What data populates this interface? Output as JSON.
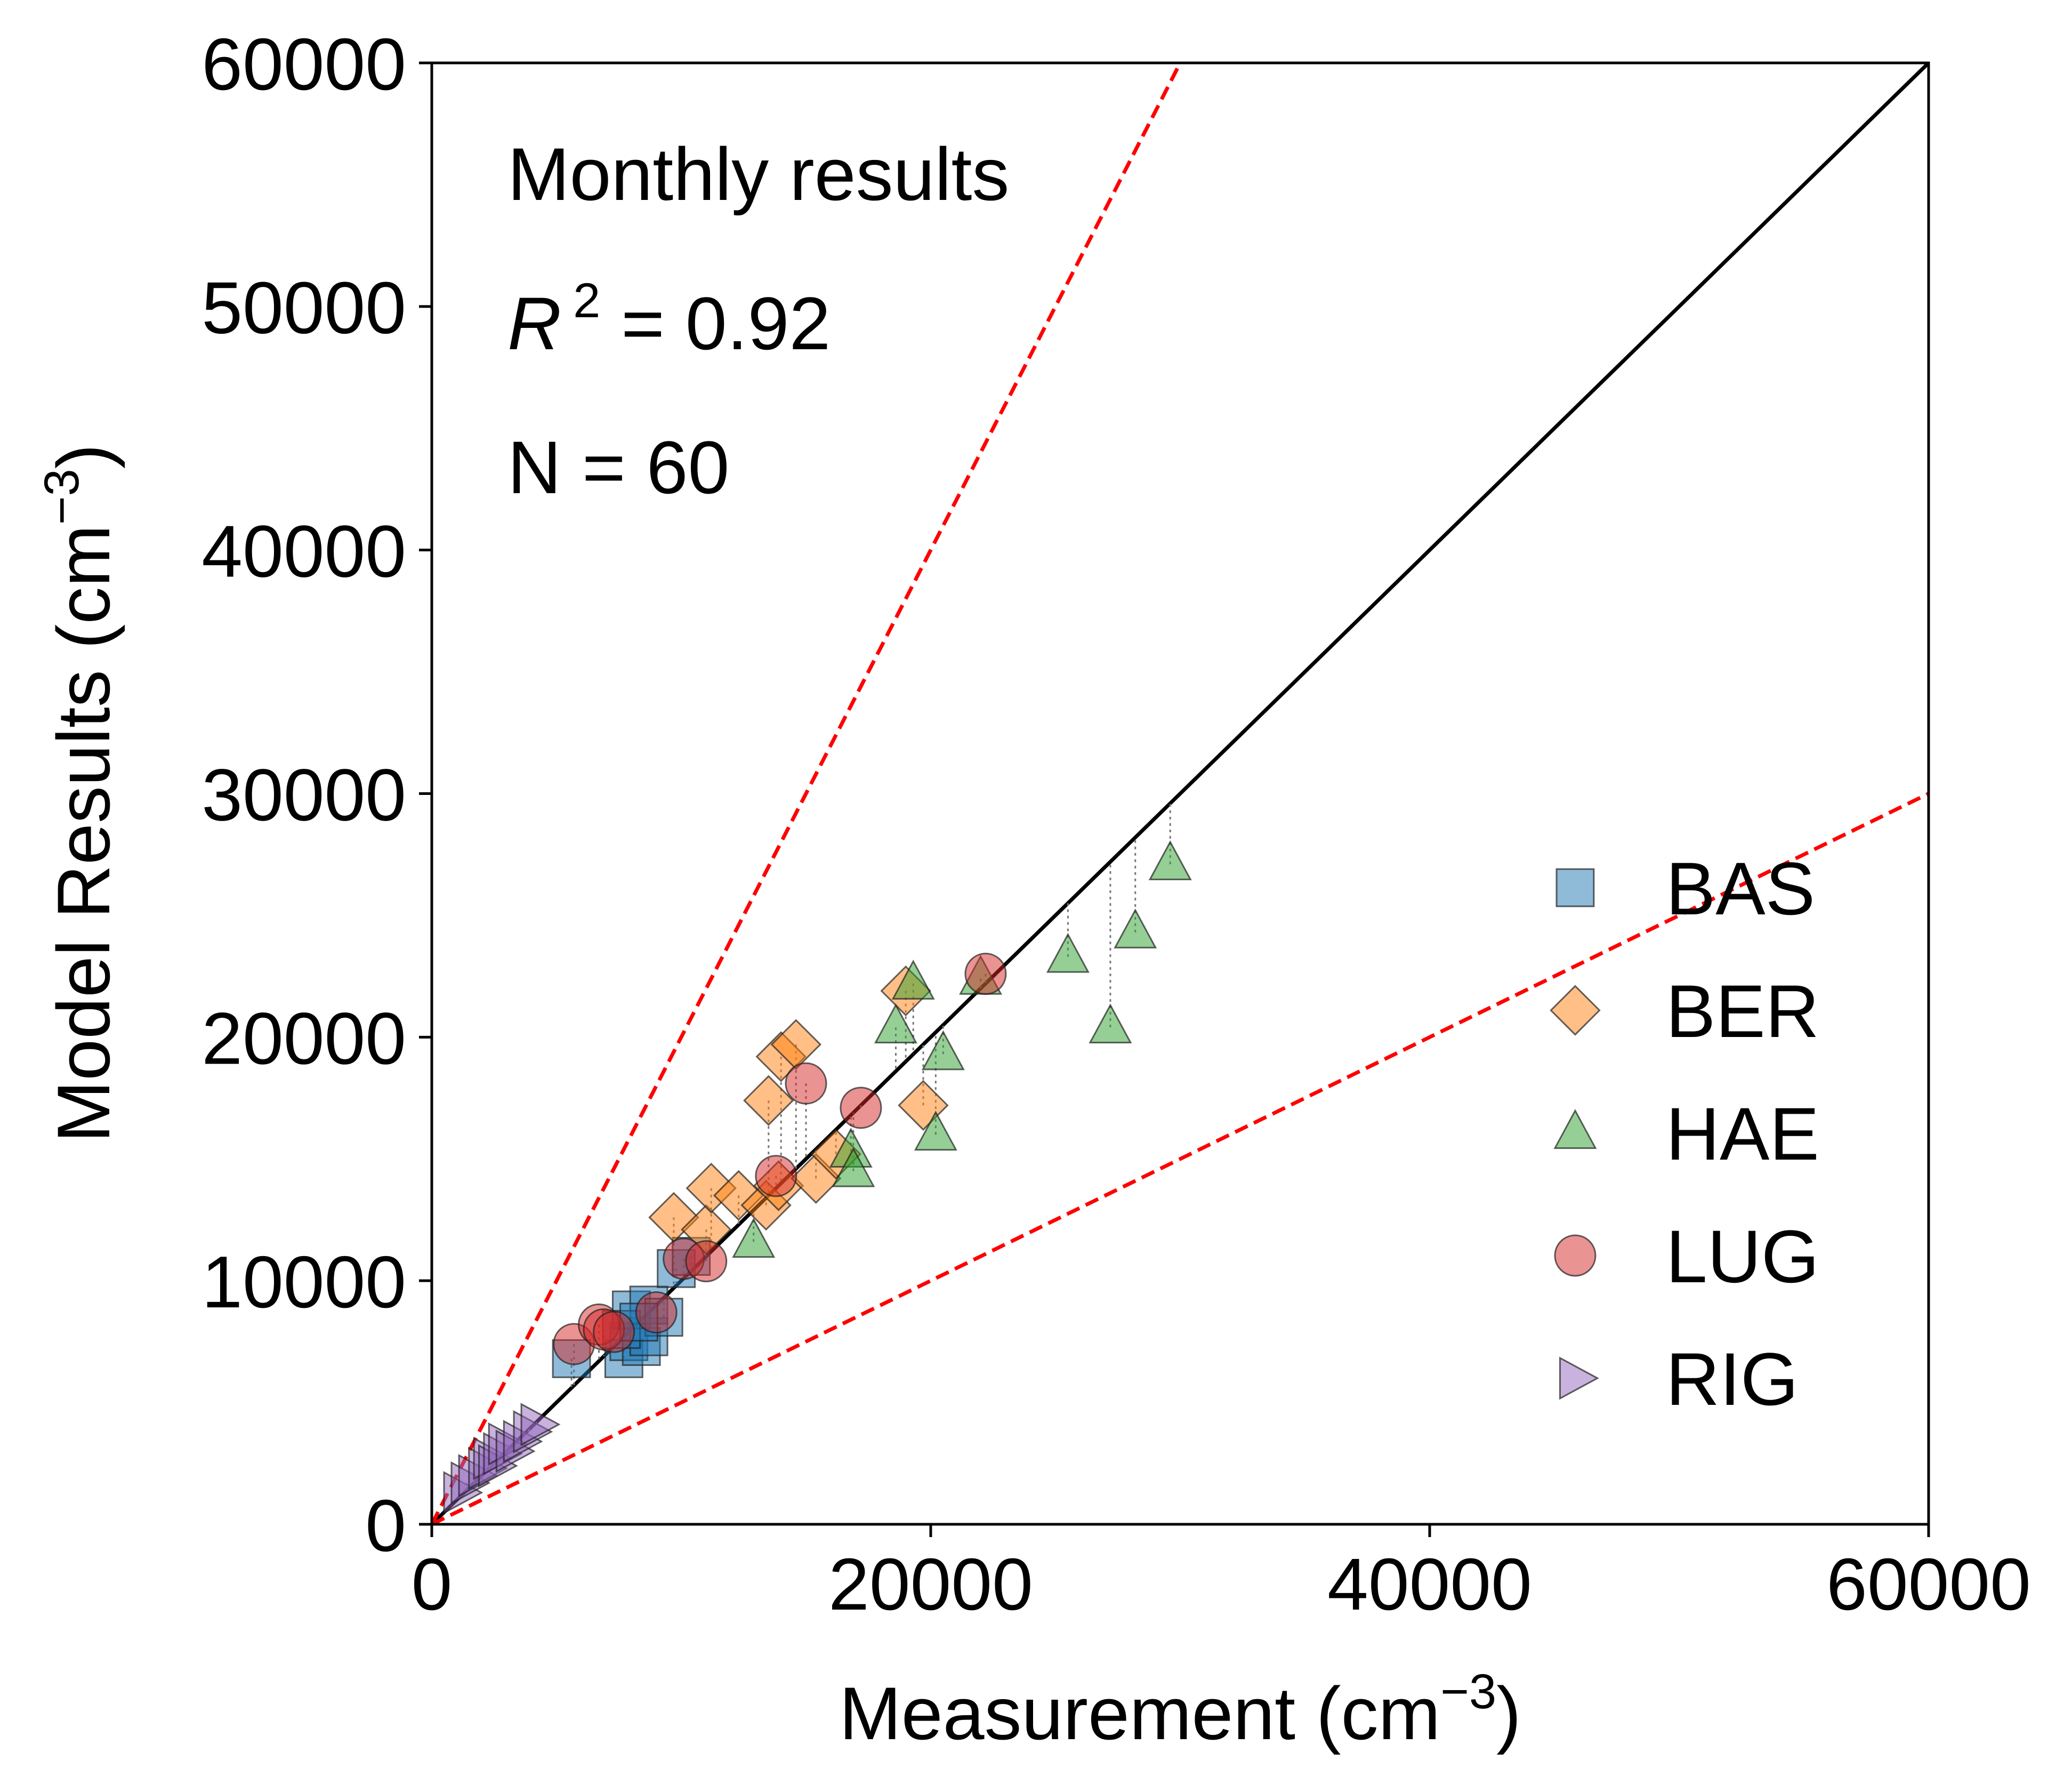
{
  "chart_data": {
    "type": "scatter",
    "title": "",
    "xlabel": "Measurement (cm",
    "xlabel_sup": "−3",
    "xlabel_close": ")",
    "ylabel": "Model Results (cm",
    "ylabel_sup": "−3",
    "ylabel_close": ")",
    "xlim": [
      0,
      60000
    ],
    "ylim": [
      0,
      60000
    ],
    "xticks": [
      "0",
      "20000",
      "40000",
      "60000"
    ],
    "yticks": [
      "0",
      "10000",
      "20000",
      "30000",
      "40000",
      "50000",
      "60000"
    ],
    "xtick_values": [
      0,
      20000,
      40000,
      60000
    ],
    "ytick_values": [
      0,
      10000,
      20000,
      30000,
      40000,
      50000,
      60000
    ],
    "grid": false,
    "legend_position": "bottom-right",
    "annotations": {
      "line1": "Monthly results",
      "r2_symbol": "R",
      "r2_sup": "2",
      "r2_value": " = 0.92",
      "n_label": "N = 60"
    },
    "reference_lines": [
      {
        "kind": "1:1",
        "slope": 1,
        "color": "#000000",
        "style": "solid"
      },
      {
        "kind": "factor-2 upper",
        "slope": 2,
        "color": "#ff0000",
        "style": "dashed"
      },
      {
        "kind": "factor-2 lower",
        "slope": 0.5,
        "color": "#ff0000",
        "style": "dashed"
      }
    ],
    "series": [
      {
        "name": "BAS",
        "marker": "square",
        "color": "#1f77b4",
        "points": [
          {
            "x": 5600,
            "y": 6800
          },
          {
            "x": 7700,
            "y": 6800
          },
          {
            "x": 7900,
            "y": 7500
          },
          {
            "x": 8400,
            "y": 7300
          },
          {
            "x": 8700,
            "y": 7700
          },
          {
            "x": 8000,
            "y": 8800
          },
          {
            "x": 8700,
            "y": 9000
          },
          {
            "x": 9300,
            "y": 8500
          },
          {
            "x": 9800,
            "y": 10500
          },
          {
            "x": 10400,
            "y": 11000
          },
          {
            "x": 7600,
            "y": 8000
          },
          {
            "x": 8300,
            "y": 8300
          }
        ]
      },
      {
        "name": "BER",
        "marker": "diamond",
        "color": "#ff7f0e",
        "points": [
          {
            "x": 9700,
            "y": 12600
          },
          {
            "x": 11000,
            "y": 12100
          },
          {
            "x": 11200,
            "y": 13800
          },
          {
            "x": 12300,
            "y": 13500
          },
          {
            "x": 13400,
            "y": 13100
          },
          {
            "x": 13900,
            "y": 13900
          },
          {
            "x": 13500,
            "y": 17400
          },
          {
            "x": 14000,
            "y": 19200
          },
          {
            "x": 14600,
            "y": 19700
          },
          {
            "x": 15400,
            "y": 14200
          },
          {
            "x": 16200,
            "y": 15200
          },
          {
            "x": 19000,
            "y": 21900
          },
          {
            "x": 19700,
            "y": 17200
          }
        ]
      },
      {
        "name": "HAE",
        "marker": "triangle-up",
        "color": "#2ca02c",
        "points": [
          {
            "x": 12900,
            "y": 11600
          },
          {
            "x": 16800,
            "y": 15300
          },
          {
            "x": 16900,
            "y": 14500
          },
          {
            "x": 18600,
            "y": 20400
          },
          {
            "x": 19300,
            "y": 22200
          },
          {
            "x": 20200,
            "y": 16000
          },
          {
            "x": 20500,
            "y": 19300
          },
          {
            "x": 22000,
            "y": 22400
          },
          {
            "x": 25500,
            "y": 23300
          },
          {
            "x": 27200,
            "y": 20400
          },
          {
            "x": 28200,
            "y": 24300
          },
          {
            "x": 29600,
            "y": 27100
          }
        ]
      },
      {
        "name": "LUG",
        "marker": "circle",
        "color": "#d62728",
        "points": [
          {
            "x": 5700,
            "y": 7400
          },
          {
            "x": 6700,
            "y": 8200
          },
          {
            "x": 6900,
            "y": 8000
          },
          {
            "x": 7300,
            "y": 7900
          },
          {
            "x": 9000,
            "y": 8700
          },
          {
            "x": 10100,
            "y": 10900
          },
          {
            "x": 11000,
            "y": 10800
          },
          {
            "x": 13800,
            "y": 14300
          },
          {
            "x": 15000,
            "y": 18100
          },
          {
            "x": 17200,
            "y": 17100
          },
          {
            "x": 22200,
            "y": 22600
          }
        ]
      },
      {
        "name": "RIG",
        "marker": "triangle-right",
        "color": "#9467bd",
        "points": [
          {
            "x": 1100,
            "y": 1300
          },
          {
            "x": 1400,
            "y": 1700
          },
          {
            "x": 1700,
            "y": 2000
          },
          {
            "x": 2100,
            "y": 2300
          },
          {
            "x": 2300,
            "y": 2700
          },
          {
            "x": 2500,
            "y": 2400
          },
          {
            "x": 2700,
            "y": 2900
          },
          {
            "x": 2900,
            "y": 3300
          },
          {
            "x": 3200,
            "y": 3000
          },
          {
            "x": 3500,
            "y": 3400
          },
          {
            "x": 3900,
            "y": 3800
          },
          {
            "x": 4200,
            "y": 4100
          }
        ]
      }
    ]
  }
}
